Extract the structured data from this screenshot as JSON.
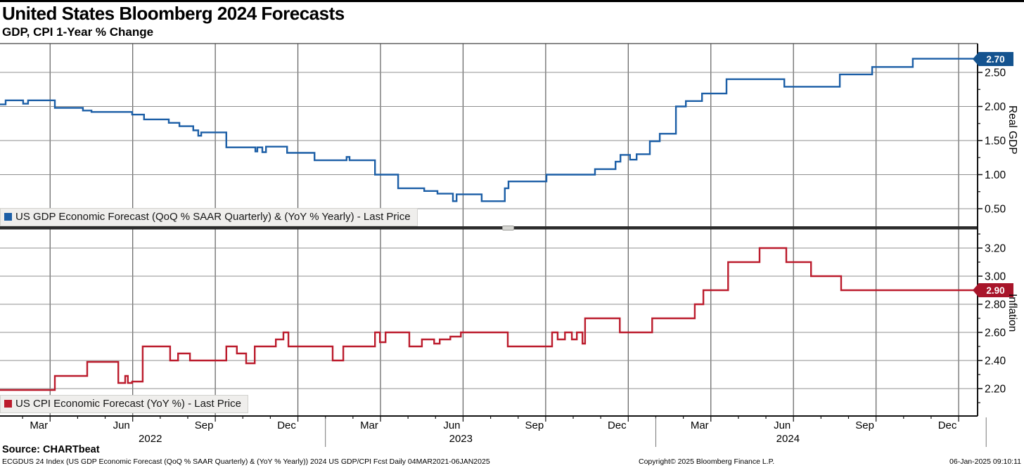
{
  "header": {
    "title": "United States Bloomberg 2024 Forecasts",
    "subtitle": "GDP, CPI 1-Year % Change"
  },
  "colors": {
    "gdp_line": "#1b5ea6",
    "cpi_line": "#bb1b2c",
    "gdp_badge_bg": "#14538f",
    "cpi_badge_bg": "#a8152a",
    "grid_h": "#8f8f8f",
    "grid_v": "#5e5e5e",
    "axis": "#111111",
    "divider": "#2b2b2b",
    "legend_bg": "#efeeec"
  },
  "panels": [
    {
      "id": "gdp",
      "axis_title": "Real GDP",
      "legend": "US GDP Economic Forecast (QoQ % SAAR Quarterly) & (YoY % Yearly) - Last Price",
      "last_price_label": "2.70",
      "ylim": [
        0.242,
        2.923
      ],
      "major_ticks": [
        {
          "v": 2.5,
          "label": "2.50"
        },
        {
          "v": 2.0,
          "label": "2.00"
        },
        {
          "v": 1.5,
          "label": "1.50"
        },
        {
          "v": 1.0,
          "label": "1.00"
        },
        {
          "v": 0.5,
          "label": "0.50"
        }
      ],
      "minor_ticks": [
        2.75,
        2.25,
        1.75,
        1.25,
        0.75
      ]
    },
    {
      "id": "cpi",
      "axis_title": "Inflation",
      "legend": "US CPI Economic Forecast (YoY %) - Last Price",
      "last_price_label": "2.90",
      "ylim": [
        2.005,
        3.33
      ],
      "major_ticks": [
        {
          "v": 3.2,
          "label": "3.20"
        },
        {
          "v": 3.0,
          "label": "3.00"
        },
        {
          "v": 2.8,
          "label": "2.80"
        },
        {
          "v": 2.6,
          "label": "2.60"
        },
        {
          "v": 2.4,
          "label": "2.40"
        },
        {
          "v": 2.2,
          "label": "2.20"
        }
      ],
      "minor_ticks": [
        3.3,
        3.1,
        2.9,
        2.7,
        2.5,
        2.3,
        2.1
      ]
    }
  ],
  "x_axis": {
    "quarter_labels": [
      {
        "label": "Mar",
        "month": 2
      },
      {
        "label": "Jun",
        "month": 5
      },
      {
        "label": "Sep",
        "month": 8
      },
      {
        "label": "Dec",
        "month": 11
      },
      {
        "label": "Mar",
        "month": 14
      },
      {
        "label": "Jun",
        "month": 17
      },
      {
        "label": "Sep",
        "month": 20
      },
      {
        "label": "Dec",
        "month": 23
      },
      {
        "label": "Mar",
        "month": 26
      },
      {
        "label": "Jun",
        "month": 29
      },
      {
        "label": "Sep",
        "month": 32
      },
      {
        "label": "Dec",
        "month": 35
      }
    ],
    "year_labels": [
      {
        "label": "2022",
        "year": 2022.47
      },
      {
        "label": "2023",
        "year": 2023.41
      },
      {
        "label": "2024",
        "year": 2024.4
      }
    ],
    "year_separator_months": [
      12,
      24,
      36
    ]
  },
  "footer": {
    "source": "Source: CHARTbeat",
    "meta": "ECGDUS 24 Index (US GDP Economic Forecast (QoQ % SAAR Quarterly) & (YoY % Yearly)) 2024 US GDP/CPI Fcst  Daily 04MAR2021-06JAN2025",
    "copyright": "Copyright© 2025 Bloomberg Finance L.P.",
    "timestamp": "06-Jan-2025 09:10:11"
  },
  "chart_data": {
    "type": "line",
    "style": "step-after",
    "x_unit": "decimal_year",
    "x_domain": [
      2022.015,
      2024.974
    ],
    "grid": true,
    "legend_position": "bottom-left-of-each-panel",
    "series": [
      {
        "name": "US GDP Economic Forecast (QoQ % SAAR Quarterly) & (YoY % Yearly) - Last Price",
        "panel": "gdp",
        "last_price": 2.7,
        "points": [
          [
            2022.015,
            2.03
          ],
          [
            2022.032,
            2.09
          ],
          [
            2022.085,
            2.04
          ],
          [
            2022.1,
            2.09
          ],
          [
            2022.181,
            1.98
          ],
          [
            2022.266,
            1.94
          ],
          [
            2022.292,
            1.92
          ],
          [
            2022.415,
            1.88
          ],
          [
            2022.451,
            1.81
          ],
          [
            2022.526,
            1.76
          ],
          [
            2022.558,
            1.71
          ],
          [
            2022.6,
            1.65
          ],
          [
            2022.615,
            1.57
          ],
          [
            2022.624,
            1.62
          ],
          [
            2022.7,
            1.4
          ],
          [
            2022.788,
            1.34
          ],
          [
            2022.794,
            1.4
          ],
          [
            2022.809,
            1.33
          ],
          [
            2022.82,
            1.41
          ],
          [
            2022.884,
            1.32
          ],
          [
            2022.967,
            1.21
          ],
          [
            2023.064,
            1.26
          ],
          [
            2023.073,
            1.21
          ],
          [
            2023.15,
            1.0
          ],
          [
            2023.22,
            0.8
          ],
          [
            2023.299,
            0.76
          ],
          [
            2023.339,
            0.72
          ],
          [
            2023.386,
            0.61
          ],
          [
            2023.397,
            0.71
          ],
          [
            2023.473,
            0.61
          ],
          [
            2023.543,
            0.8
          ],
          [
            2023.554,
            0.9
          ],
          [
            2023.669,
            1.0
          ],
          [
            2023.816,
            1.08
          ],
          [
            2023.878,
            1.19
          ],
          [
            2023.893,
            1.29
          ],
          [
            2023.922,
            1.22
          ],
          [
            2023.942,
            1.3
          ],
          [
            2023.982,
            1.49
          ],
          [
            2024.012,
            1.6
          ],
          [
            2024.061,
            2.0
          ],
          [
            2024.091,
            2.08
          ],
          [
            2024.14,
            2.19
          ],
          [
            2024.214,
            2.4
          ],
          [
            2024.389,
            2.29
          ],
          [
            2024.557,
            2.47
          ],
          [
            2024.655,
            2.58
          ],
          [
            2024.778,
            2.7
          ]
        ]
      },
      {
        "name": "US CPI Economic Forecast (YoY %) - Last Price",
        "panel": "cpi",
        "last_price": 2.9,
        "points": [
          [
            2022.015,
            2.19
          ],
          [
            2022.181,
            2.29
          ],
          [
            2022.279,
            2.39
          ],
          [
            2022.373,
            2.24
          ],
          [
            2022.394,
            2.29
          ],
          [
            2022.402,
            2.24
          ],
          [
            2022.415,
            2.25
          ],
          [
            2022.447,
            2.5
          ],
          [
            2022.53,
            2.4
          ],
          [
            2022.554,
            2.45
          ],
          [
            2022.59,
            2.4
          ],
          [
            2022.7,
            2.5
          ],
          [
            2022.732,
            2.45
          ],
          [
            2022.76,
            2.38
          ],
          [
            2022.786,
            2.5
          ],
          [
            2022.85,
            2.55
          ],
          [
            2022.873,
            2.6
          ],
          [
            2022.888,
            2.5
          ],
          [
            2023.022,
            2.4
          ],
          [
            2023.054,
            2.5
          ],
          [
            2023.15,
            2.6
          ],
          [
            2023.165,
            2.53
          ],
          [
            2023.182,
            2.6
          ],
          [
            2023.254,
            2.5
          ],
          [
            2023.292,
            2.55
          ],
          [
            2023.329,
            2.52
          ],
          [
            2023.346,
            2.55
          ],
          [
            2023.378,
            2.57
          ],
          [
            2023.41,
            2.6
          ],
          [
            2023.552,
            2.5
          ],
          [
            2023.686,
            2.6
          ],
          [
            2023.703,
            2.55
          ],
          [
            2023.725,
            2.6
          ],
          [
            2023.746,
            2.55
          ],
          [
            2023.761,
            2.6
          ],
          [
            2023.778,
            2.52
          ],
          [
            2023.786,
            2.7
          ],
          [
            2023.891,
            2.6
          ],
          [
            2023.989,
            2.7
          ],
          [
            2024.118,
            2.8
          ],
          [
            2024.144,
            2.9
          ],
          [
            2024.219,
            3.1
          ],
          [
            2024.314,
            3.2
          ],
          [
            2024.395,
            3.1
          ],
          [
            2024.47,
            3.0
          ],
          [
            2024.561,
            2.9
          ]
        ]
      }
    ]
  }
}
